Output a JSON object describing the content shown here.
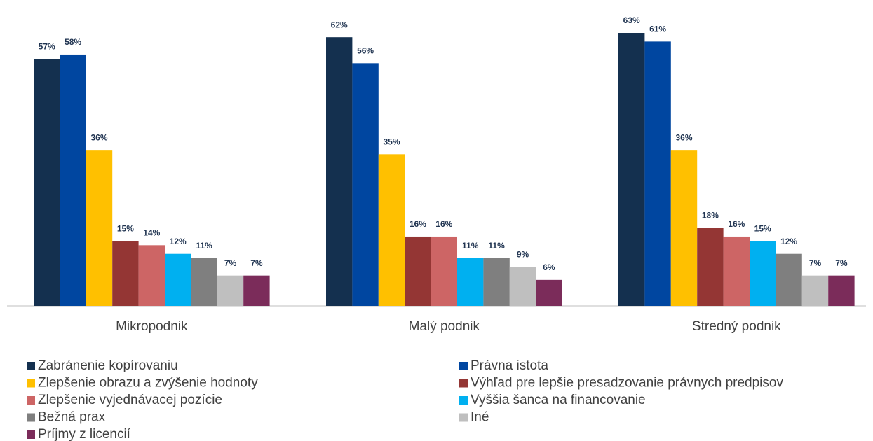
{
  "chart_data": {
    "type": "bar",
    "categories": [
      "Mikropodnik",
      "Malý podnik",
      "Stredný podnik"
    ],
    "series": [
      {
        "name": "Zabránenie kopírovaniu",
        "color": "#14304f",
        "values": [
          57,
          62,
          63
        ],
        "value_labels": [
          "57%",
          "62%",
          "63%"
        ]
      },
      {
        "name": "Právna istota",
        "color": "#0046a0",
        "values": [
          58,
          56,
          61
        ],
        "value_labels": [
          "58%",
          "56%",
          "61%"
        ]
      },
      {
        "name": "Zlepšenie obrazu a zvýšenie hodnoty",
        "color": "#ffc000",
        "values": [
          36,
          35,
          36
        ],
        "value_labels": [
          "36%",
          "35%",
          "36%"
        ]
      },
      {
        "name": "Výhľad pre lepšie presadzovanie právnych predpisov",
        "color": "#943634",
        "values": [
          15,
          16,
          18
        ],
        "value_labels": [
          "15%",
          "16%",
          "18%"
        ]
      },
      {
        "name": "Zlepšenie vyjednávacej pozície",
        "color": "#cd6565",
        "values": [
          14,
          16,
          16
        ],
        "value_labels": [
          "14%",
          "16%",
          "16%"
        ]
      },
      {
        "name": "Vyššia šanca na financovanie",
        "color": "#00b0f0",
        "values": [
          12,
          11,
          15
        ],
        "value_labels": [
          "12%",
          "11%",
          "15%"
        ]
      },
      {
        "name": "Bežná prax",
        "color": "#7f7f7f",
        "values": [
          11,
          11,
          12
        ],
        "value_labels": [
          "11%",
          "11%",
          "12%"
        ]
      },
      {
        "name": "Iné",
        "color": "#bfbfbf",
        "values": [
          7,
          9,
          7
        ],
        "value_labels": [
          "7%",
          "9%",
          "7%"
        ]
      },
      {
        "name": "Príjmy z licencií",
        "color": "#7b2c5a",
        "values": [
          7,
          6,
          7
        ],
        "value_labels": [
          "7%",
          "6%",
          "7%"
        ]
      }
    ]
  }
}
